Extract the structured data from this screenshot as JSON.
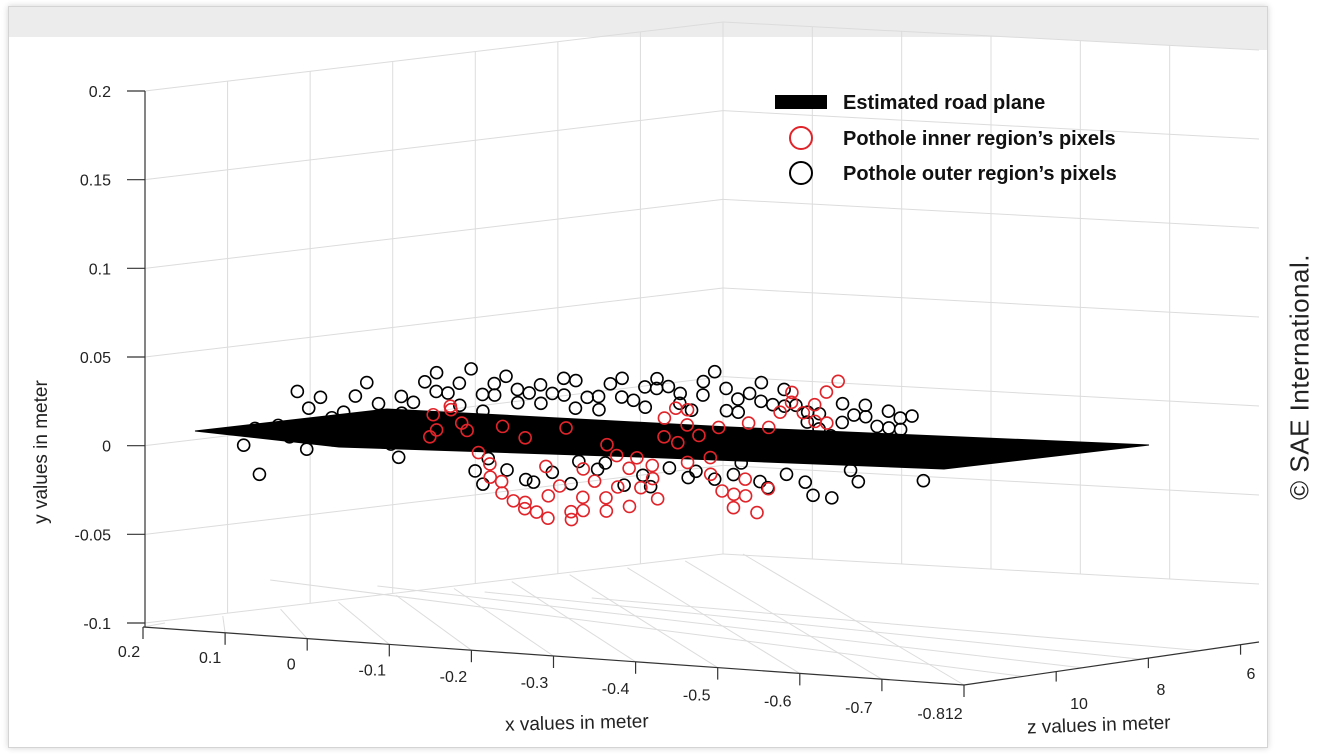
{
  "copyright": "© SAE International.",
  "chart_data": {
    "type": "scatter",
    "projection": "3d",
    "title": "",
    "xlabel": "x values in meter",
    "ylabel": "y values in meter",
    "zlabel": "z values in meter",
    "xlim": [
      -0.812,
      0.2
    ],
    "ylim": [
      -0.1,
      0.2
    ],
    "zlim": [
      6,
      12
    ],
    "x_ticks": [
      "0.2",
      "0.1",
      "0",
      "-0.1",
      "-0.2",
      "-0.3",
      "-0.4",
      "-0.5",
      "-0.6",
      "-0.7",
      "-0.812"
    ],
    "y_ticks": [
      "-0.1",
      "-0.05",
      "0",
      "0.05",
      "0.1",
      "0.15",
      "0.2"
    ],
    "z_ticks": [
      "10",
      "8",
      "6"
    ],
    "grid": true,
    "legend_position": "top-right",
    "legend": [
      {
        "label": "Estimated road plane",
        "marker": "filled-rect",
        "color": "#000000"
      },
      {
        "label": "Pothole inner region’s pixels",
        "marker": "circle",
        "color": "#e0242a"
      },
      {
        "label": "Pothole outer region’s pixels",
        "marker": "circle",
        "color": "#000000"
      }
    ],
    "road_plane": {
      "corners": [
        [
          0.2,
          0.01,
          9.5
        ],
        [
          -0.812,
          0.0,
          9.5
        ],
        [
          -0.812,
          -0.01,
          7.8
        ],
        [
          0.2,
          0.0,
          7.8
        ]
      ],
      "color": "#000000"
    },
    "series": [
      {
        "name": "Pothole inner region’s pixels",
        "color": "#e0242a",
        "points": [
          [
            -0.15,
            0.02
          ],
          [
            -0.16,
            0.015
          ],
          [
            -0.14,
            0.022
          ],
          [
            -0.13,
            0.01
          ],
          [
            -0.12,
            0.018
          ],
          [
            -0.11,
            0.005
          ],
          [
            -0.17,
            0.008
          ],
          [
            -0.18,
            -0.005
          ],
          [
            -0.19,
            -0.012
          ],
          [
            -0.2,
            -0.02
          ],
          [
            -0.21,
            -0.018
          ],
          [
            -0.22,
            -0.025
          ],
          [
            -0.23,
            -0.03
          ],
          [
            -0.24,
            -0.035
          ],
          [
            -0.25,
            -0.032
          ],
          [
            -0.26,
            -0.038
          ],
          [
            -0.27,
            -0.042
          ],
          [
            -0.28,
            -0.03
          ],
          [
            -0.29,
            -0.025
          ],
          [
            -0.3,
            -0.035
          ],
          [
            -0.31,
            -0.04
          ],
          [
            -0.32,
            -0.028
          ],
          [
            -0.33,
            -0.036
          ],
          [
            -0.34,
            -0.02
          ],
          [
            -0.35,
            -0.03
          ],
          [
            -0.36,
            -0.038
          ],
          [
            -0.37,
            -0.025
          ],
          [
            -0.38,
            -0.015
          ],
          [
            -0.39,
            -0.032
          ],
          [
            -0.4,
            -0.022
          ],
          [
            -0.41,
            -0.01
          ],
          [
            -0.42,
            -0.018
          ],
          [
            -0.43,
            0.005
          ],
          [
            -0.44,
            0.015
          ],
          [
            -0.45,
            0.02
          ],
          [
            -0.46,
            0.01
          ],
          [
            -0.47,
            0.018
          ],
          [
            -0.48,
            0.008
          ],
          [
            -0.49,
            -0.005
          ],
          [
            -0.5,
            -0.015
          ],
          [
            -0.51,
            -0.025
          ],
          [
            -0.52,
            -0.035
          ],
          [
            -0.53,
            -0.028
          ],
          [
            -0.54,
            -0.02
          ],
          [
            -0.55,
            -0.03
          ],
          [
            -0.56,
            -0.04
          ],
          [
            -0.57,
            -0.022
          ],
          [
            -0.58,
            0.012
          ],
          [
            -0.59,
            0.02
          ],
          [
            -0.6,
            0.025
          ],
          [
            -0.61,
            0.03
          ],
          [
            -0.62,
            0.018
          ],
          [
            -0.63,
            0.022
          ],
          [
            -0.64,
            0.012
          ],
          [
            -0.65,
            0.028
          ],
          [
            -0.66,
            0.015
          ],
          [
            -0.67,
            0.038
          ],
          [
            -0.21,
            0.012
          ],
          [
            -0.25,
            0.005
          ],
          [
            -0.3,
            0.01
          ],
          [
            -0.35,
            0.0
          ],
          [
            -0.4,
            -0.008
          ],
          [
            -0.45,
            0.0
          ],
          [
            -0.5,
            0.008
          ],
          [
            -0.55,
            0.015
          ],
          [
            -0.27,
            -0.01
          ],
          [
            -0.33,
            -0.012
          ],
          [
            -0.37,
            -0.005
          ],
          [
            -0.42,
            -0.03
          ],
          [
            -0.47,
            -0.01
          ]
        ]
      },
      {
        "name": "Pothole outer region’s pixels",
        "color": "#000000",
        "points": [
          [
            0.13,
            -0.002
          ],
          [
            0.12,
            0.012
          ],
          [
            0.1,
            0.01
          ],
          [
            0.11,
            -0.015
          ],
          [
            0.09,
            0.012
          ],
          [
            0.08,
            0.005
          ],
          [
            0.06,
            0.03
          ],
          [
            0.05,
            0.02
          ],
          [
            0.04,
            0.01
          ],
          [
            0.03,
            0.025
          ],
          [
            0.02,
            0.018
          ],
          [
            0.01,
            0.005
          ],
          [
            0.0,
            0.02
          ],
          [
            -0.01,
            0.01
          ],
          [
            -0.02,
            0.028
          ],
          [
            -0.03,
            0.035
          ],
          [
            -0.04,
            0.015
          ],
          [
            -0.05,
            0.022
          ],
          [
            -0.06,
            0.008
          ],
          [
            -0.07,
            0.03
          ],
          [
            -0.08,
            0.02
          ],
          [
            -0.09,
            0.012
          ],
          [
            -0.1,
            0.025
          ],
          [
            -0.11,
            0.036
          ],
          [
            -0.12,
            0.03
          ],
          [
            -0.13,
            0.04
          ],
          [
            -0.14,
            0.028
          ],
          [
            -0.15,
            0.033
          ],
          [
            -0.16,
            0.025
          ],
          [
            -0.17,
            0.045
          ],
          [
            -0.18,
            0.03
          ],
          [
            -0.19,
            0.02
          ],
          [
            -0.2,
            0.035
          ],
          [
            -0.21,
            0.028
          ],
          [
            -0.22,
            0.038
          ],
          [
            -0.23,
            0.03
          ],
          [
            -0.24,
            0.022
          ],
          [
            -0.25,
            0.032
          ],
          [
            -0.26,
            0.036
          ],
          [
            -0.27,
            0.025
          ],
          [
            -0.28,
            0.03
          ],
          [
            -0.29,
            0.038
          ],
          [
            -0.3,
            0.028
          ],
          [
            -0.31,
            0.02
          ],
          [
            -0.32,
            0.035
          ],
          [
            -0.33,
            0.025
          ],
          [
            -0.34,
            0.03
          ],
          [
            -0.35,
            0.022
          ],
          [
            -0.36,
            0.036
          ],
          [
            -0.37,
            0.028
          ],
          [
            -0.38,
            0.038
          ],
          [
            -0.39,
            0.025
          ],
          [
            -0.4,
            0.032
          ],
          [
            -0.41,
            0.02
          ],
          [
            -0.42,
            0.03
          ],
          [
            -0.43,
            0.04
          ],
          [
            -0.44,
            0.035
          ],
          [
            -0.45,
            0.025
          ],
          [
            -0.46,
            0.03
          ],
          [
            -0.47,
            0.02
          ],
          [
            -0.48,
            0.028
          ],
          [
            -0.49,
            0.035
          ],
          [
            -0.5,
            0.04
          ],
          [
            -0.51,
            0.03
          ],
          [
            -0.52,
            0.022
          ],
          [
            -0.53,
            0.028
          ],
          [
            -0.54,
            0.02
          ],
          [
            -0.55,
            0.03
          ],
          [
            -0.56,
            0.025
          ],
          [
            -0.57,
            0.035
          ],
          [
            -0.58,
            0.022
          ],
          [
            -0.59,
            0.03
          ],
          [
            -0.6,
            0.02
          ],
          [
            -0.61,
            0.025
          ],
          [
            -0.62,
            0.015
          ],
          [
            -0.63,
            0.02
          ],
          [
            -0.64,
            0.01
          ],
          [
            -0.65,
            0.018
          ],
          [
            -0.66,
            0.005
          ],
          [
            -0.67,
            0.012
          ],
          [
            -0.68,
            0.022
          ],
          [
            -0.69,
            0.015
          ],
          [
            -0.7,
            0.025
          ],
          [
            -0.71,
            0.018
          ],
          [
            -0.72,
            0.012
          ],
          [
            -0.73,
            0.02
          ],
          [
            -0.74,
            0.01
          ],
          [
            -0.75,
            0.015
          ],
          [
            -0.76,
            0.008
          ],
          [
            -0.77,
            0.015
          ],
          [
            -0.78,
            -0.022
          ],
          [
            -0.2,
            -0.005
          ],
          [
            -0.22,
            -0.012
          ],
          [
            -0.24,
            -0.018
          ],
          [
            -0.26,
            -0.02
          ],
          [
            -0.28,
            -0.015
          ],
          [
            -0.3,
            -0.022
          ],
          [
            -0.32,
            -0.01
          ],
          [
            -0.34,
            -0.015
          ],
          [
            -0.36,
            -0.012
          ],
          [
            -0.38,
            -0.02
          ],
          [
            -0.4,
            -0.015
          ],
          [
            -0.42,
            -0.022
          ],
          [
            -0.44,
            -0.012
          ],
          [
            -0.46,
            -0.018
          ],
          [
            -0.48,
            -0.015
          ],
          [
            -0.5,
            -0.02
          ],
          [
            -0.52,
            -0.018
          ],
          [
            -0.54,
            -0.012
          ],
          [
            -0.56,
            -0.018
          ],
          [
            -0.58,
            -0.022
          ],
          [
            -0.6,
            -0.015
          ],
          [
            -0.62,
            -0.02
          ],
          [
            -0.64,
            -0.028
          ],
          [
            -0.66,
            -0.03
          ],
          [
            -0.68,
            -0.015
          ],
          [
            -0.7,
            -0.022
          ],
          [
            -0.72,
            -0.01
          ],
          [
            -0.17,
            -0.012
          ],
          [
            -0.19,
            -0.02
          ],
          [
            -0.06,
            0.002
          ],
          [
            -0.08,
            -0.006
          ],
          [
            0.05,
            -0.002
          ],
          [
            0.03,
            0.006
          ],
          [
            -0.02,
            0.008
          ]
        ]
      }
    ]
  }
}
